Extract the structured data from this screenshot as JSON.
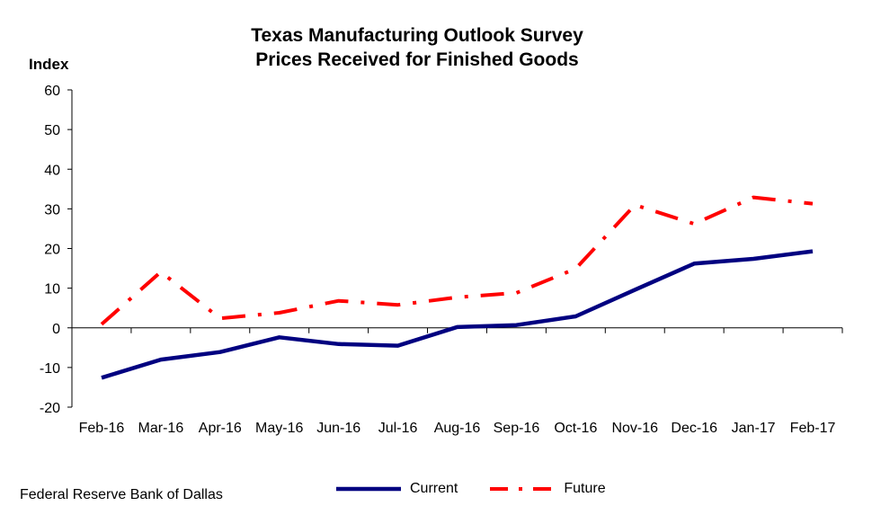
{
  "chart_data": {
    "type": "line",
    "title": "Texas Manufacturing Outlook  Survey",
    "subtitle": "Prices Received for Finished Goods",
    "ylabel": "Index",
    "xlabel": "",
    "ylim": [
      -20,
      60
    ],
    "yticks": [
      -20,
      -10,
      0,
      10,
      20,
      30,
      40,
      50,
      60
    ],
    "categories": [
      "Feb-16",
      "Mar-16",
      "Apr-16",
      "May-16",
      "Jun-16",
      "Jul-16",
      "Aug-16",
      "Sep-16",
      "Oct-16",
      "Nov-16",
      "Dec-16",
      "Jan-17",
      "Feb-17"
    ],
    "series": [
      {
        "name": "Current",
        "values": [
          -12.6,
          -8.0,
          -6.1,
          -2.4,
          -4.1,
          -4.5,
          0.2,
          0.7,
          2.9,
          9.6,
          16.2,
          17.4,
          19.3
        ],
        "color": "#000080",
        "style": "solid"
      },
      {
        "name": "Future",
        "values": [
          0.9,
          14.1,
          2.4,
          3.8,
          6.8,
          5.8,
          7.7,
          8.8,
          14.9,
          31.0,
          26.2,
          32.9,
          31.3
        ],
        "color": "#ff0000",
        "style": "dash-dot"
      }
    ],
    "grid": false,
    "legend_position": "bottom"
  },
  "source": "Federal Reserve Bank of Dallas"
}
